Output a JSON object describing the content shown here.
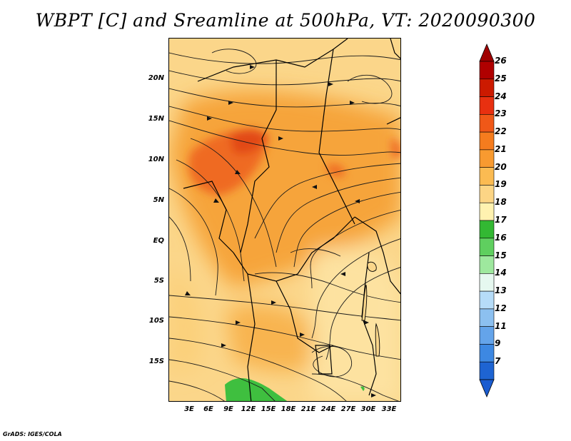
{
  "title": "WBPT [C] and Sreamline at 500hPa, VT: 2020090300",
  "footer": "GrADS: IGES/COLA",
  "axes": {
    "lat_labels": [
      "20N",
      "15N",
      "10N",
      "5N",
      "EQ",
      "5S",
      "10S",
      "15S"
    ],
    "lon_labels": [
      "3E",
      "6E",
      "9E",
      "12E",
      "15E",
      "18E",
      "21E",
      "24E",
      "27E",
      "30E",
      "33E"
    ]
  },
  "colorbar": {
    "labels": [
      "26",
      "25",
      "24",
      "23",
      "22",
      "21",
      "20",
      "19",
      "18",
      "17",
      "16",
      "15",
      "14",
      "13",
      "12",
      "11",
      "9",
      "7"
    ],
    "colors": [
      "#b00000",
      "#cc1a00",
      "#e83010",
      "#f05818",
      "#f57c1e",
      "#f89a30",
      "#fbbb52",
      "#fcd585",
      "#fff2b0",
      "#33b833",
      "#5fcf5f",
      "#9ee89e",
      "#e6f8f0",
      "#b6dcf8",
      "#8cc0f0",
      "#64a4ea",
      "#3d88e2",
      "#1e64d2"
    ],
    "top_color": "#a00000",
    "bottom_color": "#1a5cd0"
  }
}
